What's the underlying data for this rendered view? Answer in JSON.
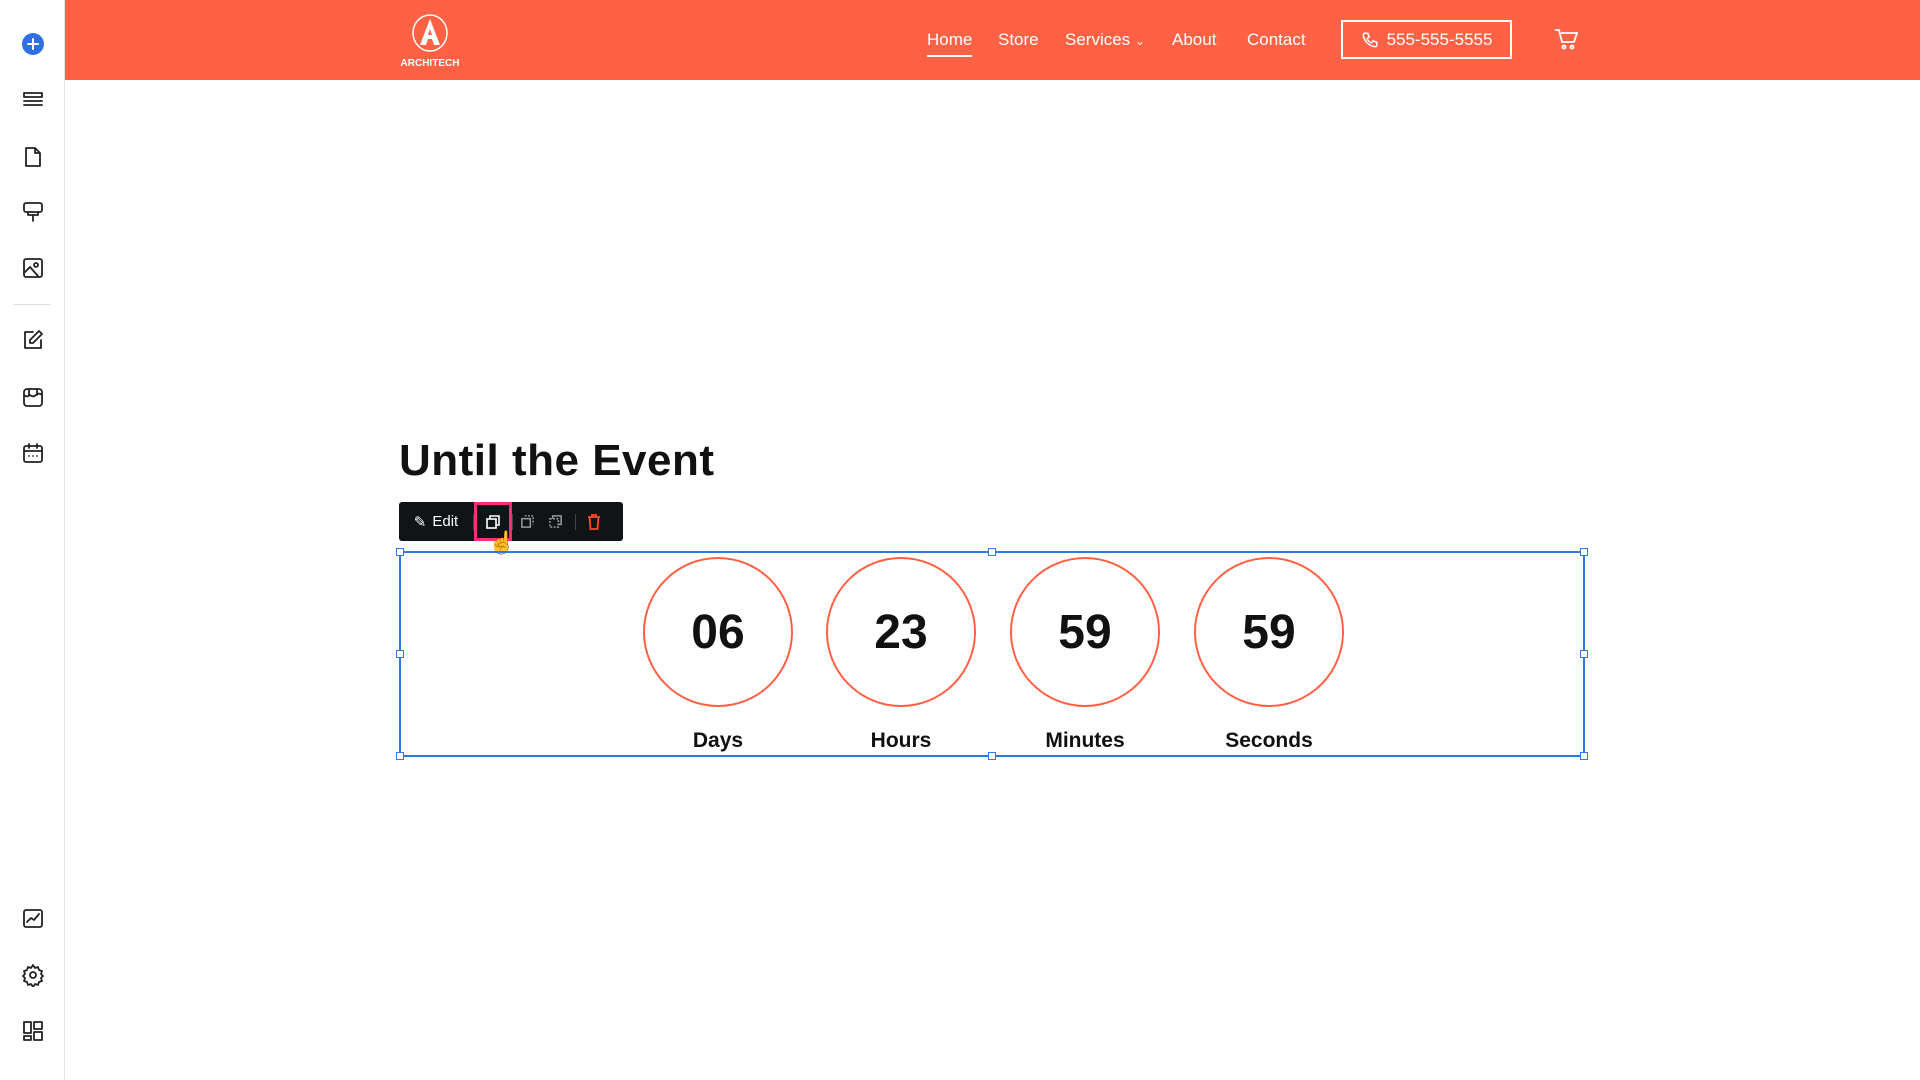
{
  "colors": {
    "brand": "#ff6145",
    "selection": "#2f7ae0",
    "toolbar": "#111417",
    "highlight": "#ff2d78"
  },
  "sidebar": {
    "top_icons": [
      "add-icon",
      "layers-icon",
      "page-icon",
      "paint-roller-icon",
      "image-icon"
    ],
    "middle_icons": [
      "blog-edit-icon",
      "store-icon",
      "calendar-icon"
    ],
    "bottom_icons": [
      "edit-site-icon",
      "gear-icon",
      "dashboard-icon"
    ]
  },
  "header": {
    "logo_text": "ARCHITECH",
    "nav": [
      "Home",
      "Store",
      "Services",
      "About",
      "Contact"
    ],
    "active": "Home",
    "phone": "555-555-5555"
  },
  "main": {
    "title": "Until the Event",
    "toolbar": {
      "edit_label": "Edit"
    },
    "countdown": [
      {
        "value": "06",
        "label": "Days"
      },
      {
        "value": "23",
        "label": "Hours"
      },
      {
        "value": "59",
        "label": "Minutes"
      },
      {
        "value": "59",
        "label": "Seconds"
      }
    ]
  }
}
